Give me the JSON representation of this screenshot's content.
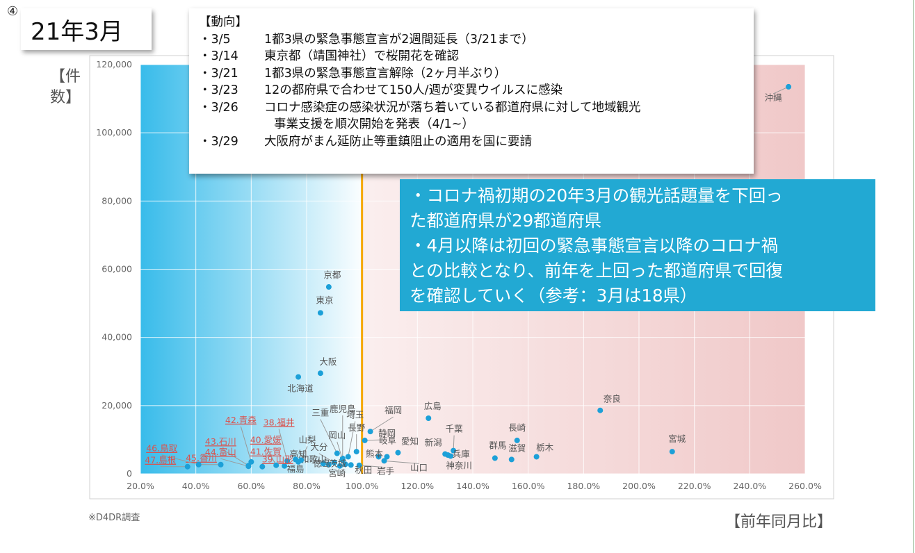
{
  "header": {
    "circle_number": "④",
    "title": "21年3月"
  },
  "notes": {
    "heading": "【動向】",
    "items": [
      {
        "date": "・3/5",
        "text": "1都3県の緊急事態宣言が2週間延長（3/21まで）"
      },
      {
        "date": "・3/14",
        "text": "東京都（靖国神社）で桜開花を確認"
      },
      {
        "date": "・3/21",
        "text": "1都3県の緊急事態宣言解除（2ヶ月半ぶり）"
      },
      {
        "date": "・3/23",
        "text": "12の都府県で合わせて150人/週が変異ウイルスに感染"
      },
      {
        "date": "・3/26",
        "text": "コロナ感染症の感染状況が落ち着いている都道府県に対して地域観光",
        "cont": "事業支援を順次開始を発表（4/1~）"
      },
      {
        "date": "・3/29",
        "text": "大阪府がまん延防止等重鎮阻止の適用を国に要請"
      }
    ]
  },
  "summary": {
    "lines": [
      "・コロナ禍初期の20年3月の観光話題量を下回っ",
      "た都道府県が29都道府県",
      "・4月以降は初回の緊急事態宣言以降のコロナ禍",
      "との比較となり、前年を上回った都道府県で回復",
      "を確認していく（参考：3月は18県）"
    ]
  },
  "source_note": "※D4DR調査",
  "x_axis_title": "【前年同月比】",
  "y_axis_title": "【件数】",
  "colors": {
    "point": "#1ca0d8",
    "highlight_label": "#d9534f",
    "label": "#555555",
    "reference_line": "#f5a800",
    "left_region": "#22b4e8",
    "right_region": "#f0c8c8"
  },
  "chart_data": {
    "type": "scatter",
    "xlim": [
      20,
      260
    ],
    "ylim": [
      0,
      120000
    ],
    "x_ticks": [
      "20.0%",
      "40.0%",
      "60.0%",
      "80.0%",
      "100.0%",
      "120.0%",
      "140.0%",
      "160.0%",
      "180.0%",
      "200.0%",
      "220.0%",
      "240.0%",
      "260.0%"
    ],
    "y_ticks": [
      "0",
      "20,000",
      "40,000",
      "60,000",
      "80,000",
      "100,000",
      "120,000"
    ],
    "reference_x": 100,
    "grid": true,
    "points": [
      {
        "name": "沖縄",
        "x": 254,
        "y": 113500
      },
      {
        "name": "京都",
        "x": 88,
        "y": 54800
      },
      {
        "name": "東京",
        "x": 85,
        "y": 47200
      },
      {
        "name": "大阪",
        "x": 85,
        "y": 29500
      },
      {
        "name": "北海道",
        "x": 77,
        "y": 28400
      },
      {
        "name": "奈良",
        "x": 186,
        "y": 18600
      },
      {
        "name": "宮城",
        "x": 212,
        "y": 6500
      },
      {
        "name": "広島",
        "x": 124,
        "y": 16300
      },
      {
        "name": "長崎",
        "x": 156,
        "y": 9800
      },
      {
        "name": "栃木",
        "x": 163,
        "y": 5000
      },
      {
        "name": "群馬",
        "x": 148,
        "y": 4600
      },
      {
        "name": "滋賀",
        "x": 154,
        "y": 4200
      },
      {
        "name": "千葉",
        "x": 133,
        "y": 6800
      },
      {
        "name": "兵庫",
        "x": 131,
        "y": 5500
      },
      {
        "name": "神奈川",
        "x": 132,
        "y": 5200
      },
      {
        "name": "新潟",
        "x": 130,
        "y": 5800
      },
      {
        "name": "福岡",
        "x": 103,
        "y": 12400
      },
      {
        "name": "静岡",
        "x": 101,
        "y": 9800
      },
      {
        "name": "愛知",
        "x": 113,
        "y": 6200
      },
      {
        "name": "岐阜",
        "x": 109,
        "y": 5000
      },
      {
        "name": "熊本",
        "x": 106,
        "y": 5000
      },
      {
        "name": "山口",
        "x": 108,
        "y": 3800
      },
      {
        "name": "岩手",
        "x": 99,
        "y": 2500
      },
      {
        "name": "長野",
        "x": 98,
        "y": 6500
      },
      {
        "name": "埼玉",
        "x": 95,
        "y": 5000
      },
      {
        "name": "鹿児島",
        "x": 93,
        "y": 4500
      },
      {
        "name": "三重",
        "x": 91,
        "y": 6000
      },
      {
        "name": "岡山",
        "x": 93,
        "y": 4100
      },
      {
        "name": "大分",
        "x": 90,
        "y": 3300
      },
      {
        "name": "秋田",
        "x": 96,
        "y": 2600
      },
      {
        "name": "宮崎",
        "x": 92,
        "y": 2300
      },
      {
        "name": "茨城",
        "x": 94,
        "y": 2800
      },
      {
        "name": "徳島",
        "x": 88,
        "y": 2700
      },
      {
        "name": "和歌山",
        "x": 86,
        "y": 3000
      },
      {
        "name": "山梨",
        "x": 78,
        "y": 4000
      },
      {
        "name": "高知",
        "x": 77,
        "y": 3500
      },
      {
        "name": "福島",
        "x": 76,
        "y": 4200
      },
      {
        "name": "38.福井",
        "x": 73,
        "y": 3800,
        "highlight": true
      },
      {
        "name": "39.山形",
        "x": 72,
        "y": 2300,
        "highlight": true
      },
      {
        "name": "40.愛媛",
        "x": 69,
        "y": 2500,
        "highlight": true
      },
      {
        "name": "41.佐賀",
        "x": 64,
        "y": 2100,
        "highlight": true
      },
      {
        "name": "42.青森",
        "x": 60,
        "y": 3500,
        "highlight": true
      },
      {
        "name": "43.石川",
        "x": 59,
        "y": 2400,
        "highlight": true
      },
      {
        "name": "44.富山",
        "x": 59,
        "y": 2200,
        "highlight": true
      },
      {
        "name": "45.香川",
        "x": 49,
        "y": 2700,
        "highlight": true
      },
      {
        "name": "46.鳥取",
        "x": 41,
        "y": 2700,
        "highlight": true
      },
      {
        "name": "47.島根",
        "x": 37,
        "y": 2100,
        "highlight": true
      }
    ]
  }
}
